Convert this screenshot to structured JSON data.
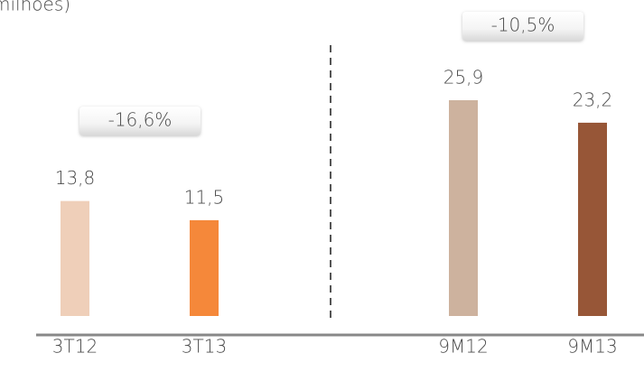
{
  "chart_data": {
    "type": "bar",
    "title": "milhões)",
    "categories": [
      "3T12",
      "3T13",
      "9M12",
      "9M13"
    ],
    "values": [
      13.8,
      11.5,
      25.9,
      23.2
    ],
    "value_labels": [
      "13,8",
      "11,5",
      "25,9",
      "23,2"
    ],
    "colors": [
      "#efcfb9",
      "#f5883a",
      "#cdb29e",
      "#975637"
    ],
    "annotations": [
      "-16,6%",
      "-10,5%"
    ]
  }
}
